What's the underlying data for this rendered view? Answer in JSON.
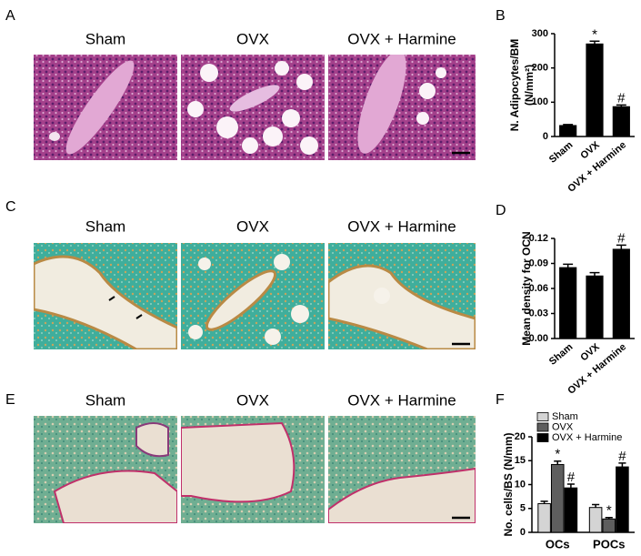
{
  "panel_letters": [
    "A",
    "B",
    "C",
    "D",
    "E",
    "F"
  ],
  "micrograph_rows": [
    {
      "labels": [
        "Sham",
        "OVX",
        "OVX + Harmine"
      ]
    },
    {
      "labels": [
        "Sham",
        "OVX",
        "OVX + Harmine"
      ]
    },
    {
      "labels": [
        "Sham",
        "OVX",
        "OVX + Harmine"
      ]
    }
  ],
  "chart_data": [
    {
      "type": "bar",
      "ylabel": "N. Adipocytes/BM",
      "ylabel_unit": "(N/mm²)",
      "categories": [
        "Sham",
        "OVX",
        "OVX + Harmine"
      ],
      "values": [
        32,
        270,
        87
      ],
      "errors": [
        3,
        8,
        5
      ],
      "value_annotations": [
        null,
        "*",
        "#"
      ],
      "color": "#000000",
      "ylim": [
        0,
        300
      ],
      "yticks": [
        0,
        100,
        200,
        300
      ]
    },
    {
      "type": "bar",
      "ylabel": "Mean density for OCN",
      "categories": [
        "Sham",
        "OVX",
        "OVX + Harmine"
      ],
      "values": [
        0.085,
        0.075,
        0.107
      ],
      "errors": [
        0.004,
        0.004,
        0.005
      ],
      "value_annotations": [
        null,
        null,
        "#"
      ],
      "color": "#000000",
      "ylim": [
        0,
        0.12
      ],
      "yticks": [
        {
          "value": 0,
          "label": "0.00"
        },
        0.03,
        0.06,
        0.09,
        0.12
      ]
    },
    {
      "type": "bar",
      "ylabel": "No. cells/BS (N/mm)",
      "categories": [
        "OCs",
        "POCs"
      ],
      "series": [
        {
          "name": "Sham",
          "color": "#d4d4d4",
          "values": [
            6,
            5.2
          ],
          "errors": [
            0.5,
            0.6
          ],
          "value_annotations": [
            null,
            null
          ]
        },
        {
          "name": "OVX",
          "color": "#5e5e5e",
          "values": [
            14.2,
            2.8
          ],
          "errors": [
            0.7,
            0.3
          ],
          "value_annotations": [
            "*",
            "*"
          ]
        },
        {
          "name": "OVX + Harmine",
          "color": "#000000",
          "values": [
            9.3,
            13.7
          ],
          "errors": [
            0.8,
            0.8
          ],
          "value_annotations": [
            "#",
            "#"
          ]
        }
      ],
      "ylim": [
        0,
        20
      ],
      "yticks": [
        0,
        5,
        10,
        15,
        20
      ],
      "legend": "top-right"
    }
  ]
}
